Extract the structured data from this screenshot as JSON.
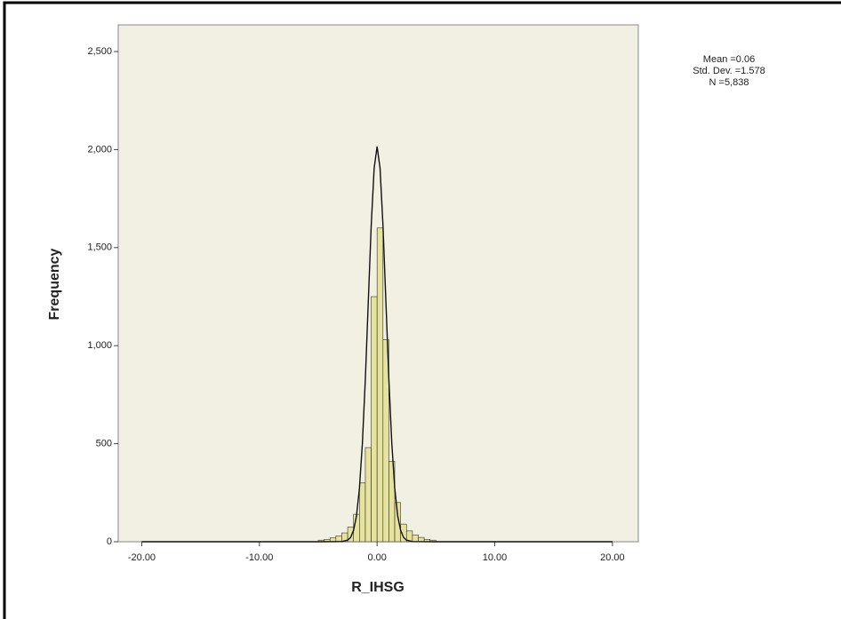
{
  "chart_data": {
    "type": "histogram",
    "x_label": "R_IHSG",
    "y_label": "Frequency",
    "annotations": [
      "Mean =0.06",
      "Std. Dev. =1.578",
      "N =5,838"
    ],
    "bins": [
      -5,
      -4.5,
      -4,
      -3.5,
      -3,
      -2.5,
      -2,
      -1.5,
      -1,
      -0.5,
      0,
      0.5,
      1,
      1.5,
      2,
      2.5,
      3,
      3.5,
      4,
      4.5,
      5
    ],
    "values": [
      8,
      12,
      20,
      30,
      45,
      75,
      140,
      300,
      480,
      1250,
      1600,
      1030,
      410,
      200,
      90,
      55,
      35,
      22,
      12,
      8
    ],
    "color": "#e6e39c",
    "curve": {
      "x": [
        -20,
        -5,
        -3,
        -2.5,
        -2.25,
        -2,
        -1.75,
        -1.5,
        -1.25,
        -1,
        -0.75,
        -0.5,
        -0.25,
        0,
        0.25,
        0.5,
        0.75,
        1,
        1.25,
        1.5,
        1.75,
        2,
        2.25,
        2.5,
        3,
        5,
        20
      ],
      "values": [
        0,
        0,
        1,
        8,
        22,
        58,
        132,
        273,
        502,
        828,
        1222,
        1613,
        1906,
        2015,
        1906,
        1613,
        1222,
        828,
        502,
        273,
        132,
        58,
        22,
        8,
        1,
        0,
        0
      ]
    },
    "xlim": [
      -22,
      22.2
    ],
    "ylim": [
      0,
      2636
    ],
    "xticks": [
      {
        "value": -20,
        "label": "-20.00"
      },
      {
        "value": -10,
        "label": "-10.00"
      },
      {
        "value": 0,
        "label": "0.00"
      },
      {
        "value": 10,
        "label": "10.00"
      },
      {
        "value": 20,
        "label": "20.00"
      }
    ],
    "yticks": [
      0,
      500,
      {
        "value": 1000,
        "label": "1,000"
      },
      {
        "value": 1500,
        "label": "1,500"
      },
      {
        "value": 2000,
        "label": "2,000"
      },
      {
        "value": 2500,
        "label": "2,500"
      }
    ]
  }
}
